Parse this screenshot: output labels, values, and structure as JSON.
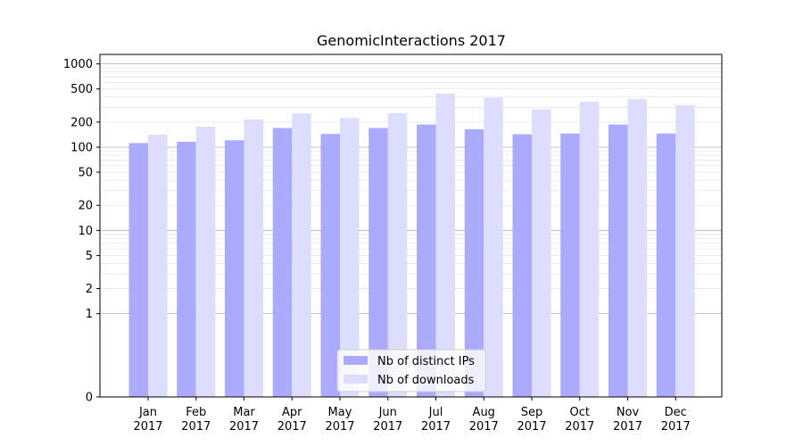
{
  "chart_data": {
    "type": "bar",
    "title": "GenomicInteractions 2017",
    "scale": "symlog",
    "categories": [
      "Jan\n2017",
      "Feb\n2017",
      "Mar\n2017",
      "Apr\n2017",
      "May\n2017",
      "Jun\n2017",
      "Jul\n2017",
      "Aug\n2017",
      "Sep\n2017",
      "Oct\n2017",
      "Nov\n2017",
      "Dec\n2017"
    ],
    "series": [
      {
        "name": "Nb of distinct IPs",
        "color": "#aaaaff",
        "values": [
          112,
          116,
          121,
          170,
          144,
          170,
          187,
          164,
          143,
          146,
          187,
          146
        ]
      },
      {
        "name": "Nb of downloads",
        "color": "#ddddff",
        "values": [
          141,
          176,
          215,
          254,
          224,
          256,
          440,
          395,
          285,
          351,
          380,
          320
        ]
      }
    ],
    "yticks": [
      0,
      1,
      2,
      5,
      10,
      20,
      50,
      100,
      200,
      500,
      1000
    ],
    "ytick_labels": [
      "0",
      "1",
      "2",
      "5",
      "10",
      "20",
      "50",
      "100",
      "200",
      "500",
      "1000"
    ],
    "ylim": [
      0,
      1300
    ],
    "grid": true,
    "legend_position": "bottom-center"
  }
}
